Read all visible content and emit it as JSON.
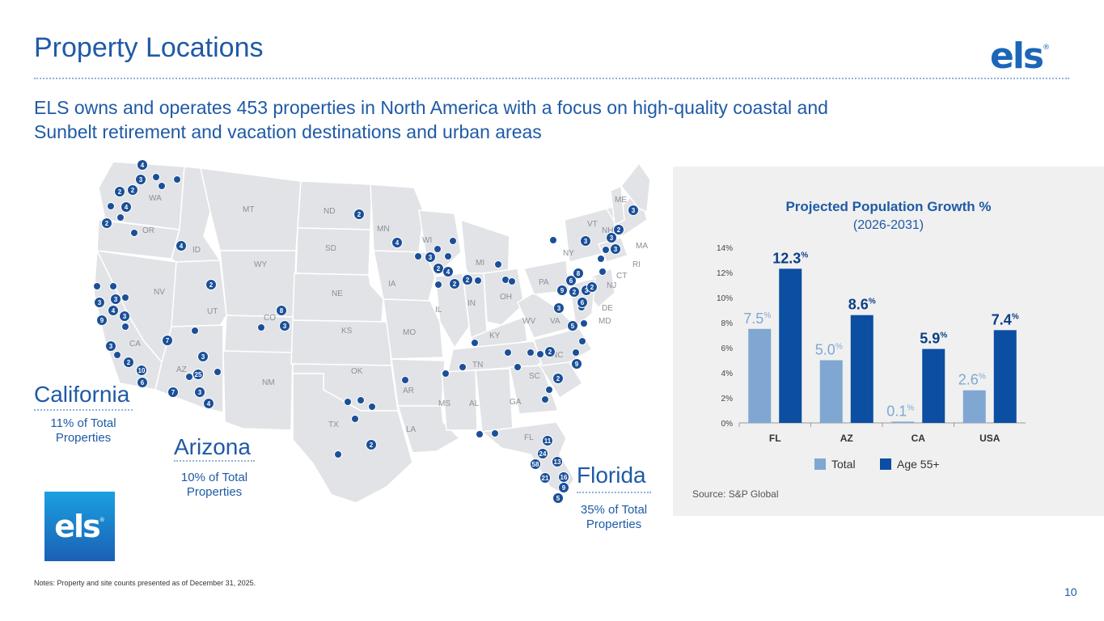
{
  "title": "Property Locations",
  "logo_text": "els",
  "logo_reg": "®",
  "subtitle": "ELS owns and operates 453 properties in North America with a focus on high-quality coastal and Sunbelt retirement and vacation destinations and urban areas",
  "regions": {
    "california": {
      "name": "California",
      "share": "11% of Total Properties"
    },
    "arizona": {
      "name": "Arizona",
      "share": "10% of Total Properties"
    },
    "florida": {
      "name": "Florida",
      "share": "35% of Total Properties"
    }
  },
  "badge_text": "els",
  "badge_reg": "®",
  "map": {
    "state_labels": [
      "WA",
      "OR",
      "ID",
      "MT",
      "ND",
      "SD",
      "WY",
      "NV",
      "UT",
      "CO",
      "CA",
      "AZ",
      "NM",
      "NE",
      "KS",
      "OK",
      "TX",
      "MN",
      "IA",
      "MO",
      "AR",
      "LA",
      "WI",
      "IL",
      "MI",
      "IN",
      "OH",
      "KY",
      "TN",
      "MS",
      "AL",
      "GA",
      "FL",
      "SC",
      "NC",
      "VA",
      "WV",
      "PA",
      "NY",
      "VT",
      "NH",
      "ME",
      "MA",
      "RI",
      "CT",
      "NJ",
      "DE",
      "MD"
    ],
    "pin_labels": [
      "4",
      "3",
      "2",
      "2",
      "4",
      "2",
      "4",
      "2",
      "3",
      "3",
      "4",
      "9",
      "3",
      "3",
      "2",
      "10",
      "6",
      "7",
      "25",
      "3",
      "3",
      "7",
      "4",
      "8",
      "3",
      "2",
      "4",
      "3",
      "2",
      "4",
      "2",
      "2",
      "2",
      "11",
      "24",
      "58",
      "13",
      "21",
      "16",
      "9",
      "5",
      "2",
      "2",
      "9",
      "3",
      "5",
      "6",
      "9",
      "2",
      "8",
      "6",
      "3",
      "3",
      "2",
      "3",
      "3",
      "2",
      "3"
    ]
  },
  "chart_data": {
    "type": "bar",
    "title": "Projected Population Growth %",
    "subtitle": "(2026-2031)",
    "categories": [
      "FL",
      "AZ",
      "CA",
      "USA"
    ],
    "series": [
      {
        "name": "Total",
        "values": [
          7.5,
          5.0,
          0.1,
          2.6
        ],
        "labels": [
          "7.5",
          "5.0",
          "0.1",
          "2.6"
        ],
        "color": "#7fa7d2"
      },
      {
        "name": "Age 55+",
        "values": [
          12.3,
          8.6,
          5.9,
          7.4
        ],
        "labels": [
          "12.3",
          "8.6",
          "5.9",
          "7.4"
        ],
        "color": "#0b4ea2"
      }
    ],
    "value_suffix": "%",
    "ylim": [
      0,
      14
    ],
    "yticks": [
      "0%",
      "2%",
      "4%",
      "6%",
      "8%",
      "10%",
      "12%",
      "14%"
    ],
    "ytick_values": [
      0,
      2,
      4,
      6,
      8,
      10,
      12,
      14
    ],
    "grid": false,
    "legend": "bottom"
  },
  "source": "Source: S&P Global",
  "notes": "Notes: Property and site counts presented as of December 31, 2025.",
  "page_number": "10"
}
